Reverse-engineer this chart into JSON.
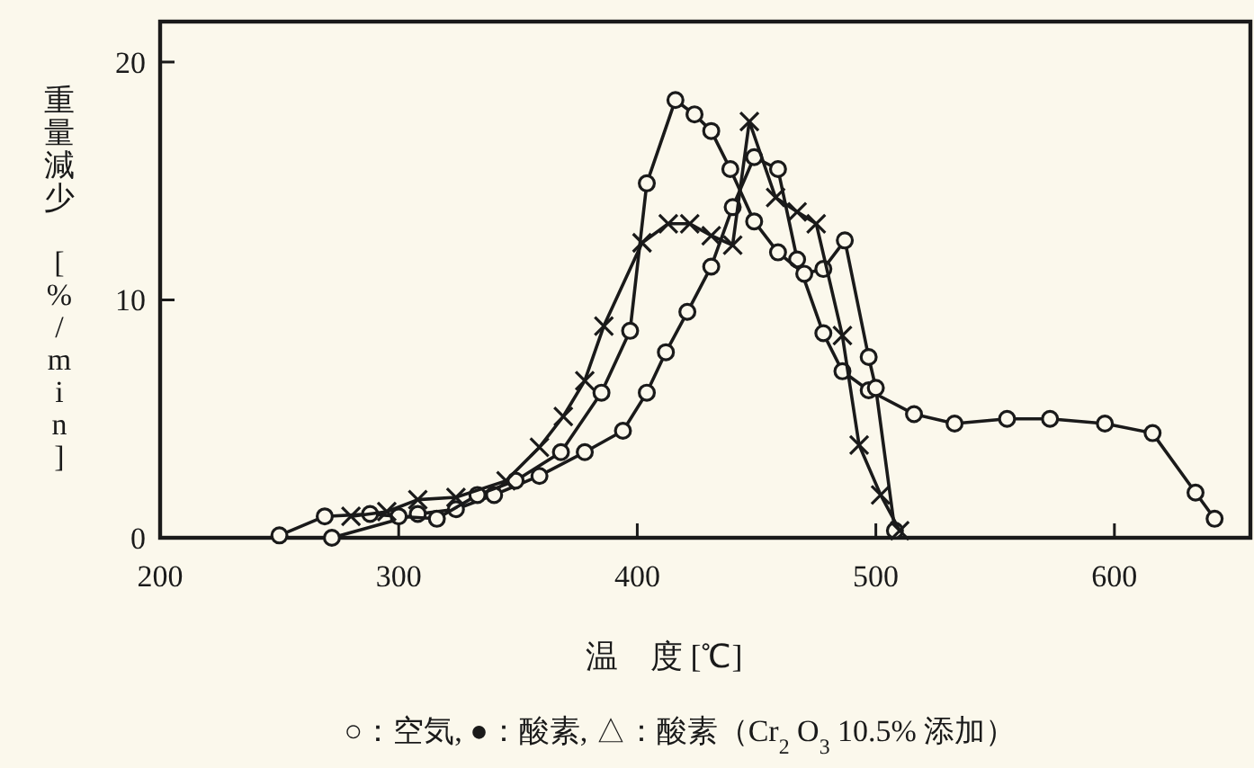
{
  "chart_data": {
    "type": "line",
    "xlabel": "温　度 [℃]",
    "ylabel": "重量減少 [%/min]",
    "xlim": [
      200,
      657
    ],
    "ylim": [
      0,
      21.7
    ],
    "xticks": [
      200,
      300,
      400,
      500,
      600
    ],
    "yticks": [
      0,
      10,
      20
    ],
    "grid": false,
    "annotations": [
      "○：空気,  ●：酸素,  △：酸素（Cr$_{2}$ O$_{3}$ 10.5% 添加）"
    ],
    "series": [
      {
        "color": "#1a1a1a",
        "marker": "circle",
        "x": [
          272,
          308,
          324,
          340,
          359,
          378,
          394,
          404,
          412,
          421,
          431,
          440,
          449,
          459,
          467,
          478,
          486,
          497,
          516,
          533,
          555,
          573,
          596,
          616,
          634,
          642
        ],
        "values": [
          0,
          1.0,
          1.2,
          1.8,
          2.6,
          3.6,
          4.5,
          6.1,
          7.8,
          9.5,
          11.4,
          13.9,
          16.0,
          15.5,
          11.7,
          8.6,
          7.0,
          6.2,
          5.2,
          4.8,
          5.0,
          5.0,
          4.8,
          4.4,
          1.9,
          0.8
        ]
      },
      {
        "color": "#1a1a1a",
        "marker": "circle",
        "x": [
          250,
          269,
          288,
          300,
          316,
          333,
          349,
          368,
          385,
          397,
          404,
          416,
          424,
          431,
          439,
          449,
          459,
          470,
          478,
          487,
          497,
          500,
          508
        ],
        "values": [
          0.1,
          0.9,
          1.0,
          0.9,
          0.8,
          1.8,
          2.4,
          3.6,
          6.1,
          8.7,
          14.9,
          18.4,
          17.8,
          17.1,
          15.5,
          13.3,
          12.0,
          11.1,
          11.3,
          12.5,
          7.6,
          6.3,
          0.3
        ]
      },
      {
        "color": "#1a1a1a",
        "marker": "cross",
        "x": [
          280,
          295,
          308,
          324,
          345,
          359,
          369,
          378,
          386,
          402,
          413,
          422,
          431,
          440,
          447,
          458,
          467,
          475,
          486,
          493,
          502,
          510
        ],
        "values": [
          0.9,
          1.1,
          1.6,
          1.7,
          2.4,
          3.8,
          5.1,
          6.6,
          8.9,
          12.4,
          13.2,
          13.2,
          12.7,
          12.3,
          17.5,
          14.3,
          13.7,
          13.2,
          8.5,
          3.9,
          1.8,
          0.3
        ]
      }
    ]
  }
}
